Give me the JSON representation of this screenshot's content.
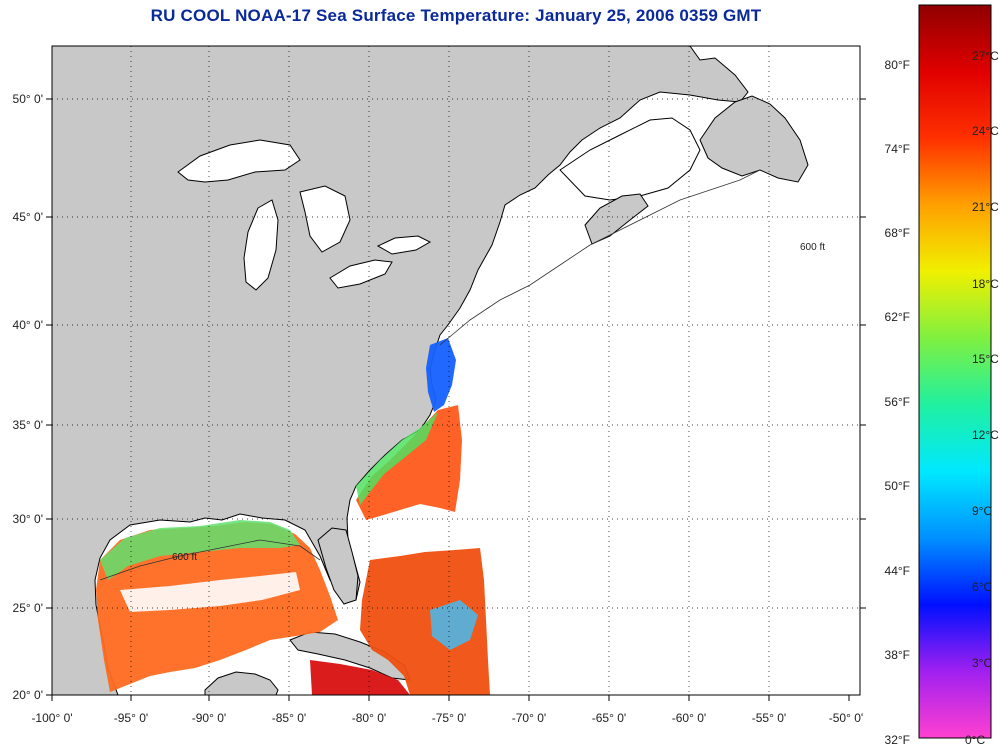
{
  "title": "RU COOL  NOAA-17  Sea Surface Temperature:  January 25, 2006 0359 GMT",
  "map": {
    "lon_labels": [
      "-100° 0'",
      "-95° 0'",
      "-90° 0'",
      "-85° 0'",
      "-80° 0'",
      "-75° 0'",
      "-70° 0'",
      "-65° 0'",
      "-60° 0'",
      "-55° 0'",
      "-50° 0'"
    ],
    "lat_labels": [
      "20° 0'",
      "25° 0'",
      "30° 0'",
      "35° 0'",
      "40° 0'",
      "45° 0'",
      "50° 0'"
    ],
    "isobath_label": "600 ft",
    "land_color": "#c8c8c8",
    "ocean_color": "#ffffff"
  },
  "colorbar": {
    "fahrenheit_labels": [
      "80°F",
      "74°F",
      "68°F",
      "62°F",
      "56°F",
      "50°F",
      "44°F",
      "38°F",
      "32°F"
    ],
    "celsius_labels": [
      "27°C",
      "24°C",
      "21°C",
      "18°C",
      "15°C",
      "12°C",
      "9°C",
      "6°C",
      "3°C",
      "0°C"
    ],
    "colors": [
      "#ff40d0",
      "#a020f0",
      "#0010ff",
      "#0090ff",
      "#00e8ff",
      "#20f0a0",
      "#80f040",
      "#f0f000",
      "#ffa000",
      "#ff3000",
      "#e00000",
      "#900000"
    ]
  }
}
